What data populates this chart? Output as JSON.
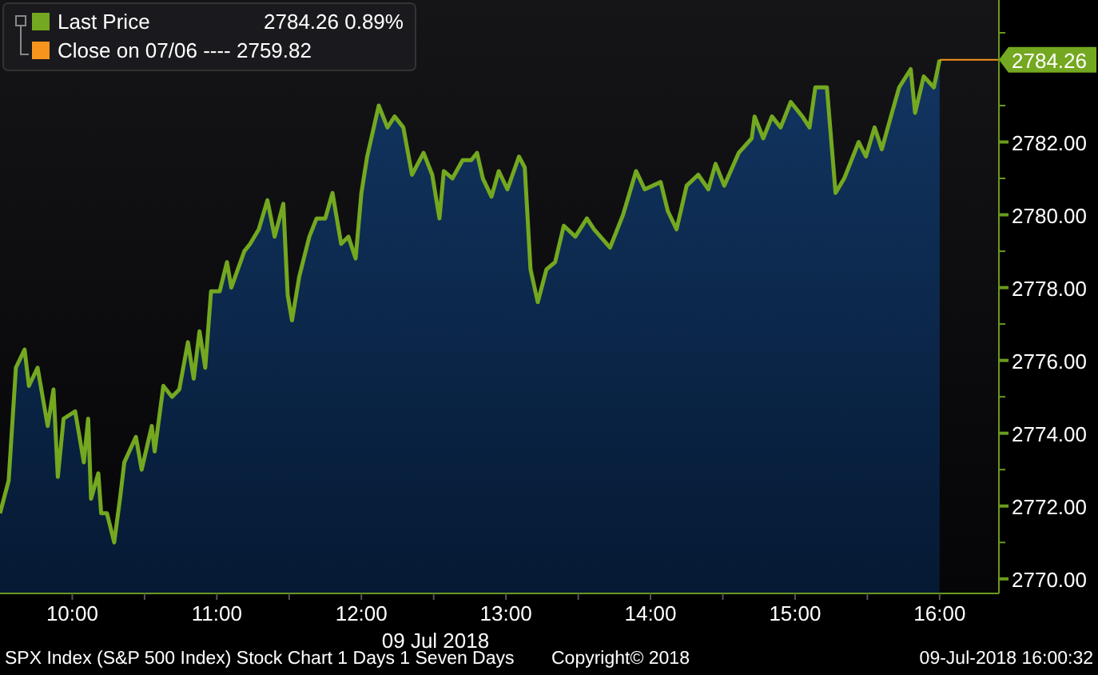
{
  "chart_data": {
    "type": "area",
    "xlabel": "09 Jul 2018",
    "x": [
      9.5,
      9.56,
      9.61,
      9.67,
      9.7,
      9.76,
      9.83,
      9.87,
      9.9,
      9.94,
      10.02,
      10.08,
      10.11,
      10.13,
      10.18,
      10.2,
      10.24,
      10.29,
      10.33,
      10.36,
      10.44,
      10.48,
      10.55,
      10.57,
      10.63,
      10.69,
      10.74,
      10.8,
      10.84,
      10.88,
      10.92,
      10.96,
      11.02,
      11.07,
      11.1,
      11.19,
      11.23,
      11.29,
      11.35,
      11.4,
      11.46,
      11.49,
      11.52,
      11.57,
      11.64,
      11.69,
      11.75,
      11.8,
      11.86,
      11.91,
      11.96,
      12.0,
      12.04,
      12.12,
      12.18,
      12.23,
      12.29,
      12.35,
      12.43,
      12.49,
      12.54,
      12.57,
      12.63,
      12.7,
      12.76,
      12.8,
      12.84,
      12.9,
      12.95,
      13.01,
      13.09,
      13.13,
      13.17,
      13.22,
      13.28,
      13.34,
      13.4,
      13.48,
      13.56,
      13.61,
      13.72,
      13.81,
      13.9,
      13.96,
      14.07,
      14.12,
      14.18,
      14.25,
      14.33,
      14.4,
      14.45,
      14.51,
      14.61,
      14.7,
      14.72,
      14.78,
      14.84,
      14.9,
      14.97,
      15.05,
      15.1,
      15.14,
      15.22,
      15.28,
      15.34,
      15.44,
      15.49,
      15.55,
      15.6,
      15.67,
      15.72,
      15.8,
      15.83,
      15.89,
      15.96,
      16.0
    ],
    "series": [
      {
        "name": "Last Price",
        "color": "#74a820",
        "values": [
          2771.8,
          2772.7,
          2775.8,
          2776.3,
          2775.3,
          2775.8,
          2774.2,
          2775.2,
          2772.8,
          2774.4,
          2774.6,
          2773.2,
          2774.4,
          2772.2,
          2772.9,
          2771.8,
          2771.8,
          2771.0,
          2772.2,
          2773.2,
          2773.9,
          2773.0,
          2774.2,
          2773.5,
          2775.3,
          2775.0,
          2775.2,
          2776.5,
          2775.5,
          2776.8,
          2775.8,
          2777.9,
          2777.9,
          2778.7,
          2778.0,
          2779.0,
          2779.2,
          2779.6,
          2780.4,
          2779.4,
          2780.3,
          2777.8,
          2777.1,
          2778.3,
          2779.4,
          2779.9,
          2779.9,
          2780.6,
          2779.2,
          2779.4,
          2778.8,
          2780.6,
          2781.6,
          2783.0,
          2782.4,
          2782.7,
          2782.4,
          2781.1,
          2781.7,
          2781.1,
          2779.9,
          2781.2,
          2781.0,
          2781.5,
          2781.5,
          2781.7,
          2781.0,
          2780.5,
          2781.2,
          2780.7,
          2781.6,
          2781.3,
          2778.5,
          2777.6,
          2778.5,
          2778.7,
          2779.7,
          2779.4,
          2779.9,
          2779.6,
          2779.1,
          2780.0,
          2781.2,
          2780.7,
          2780.9,
          2780.1,
          2779.6,
          2780.8,
          2781.1,
          2780.7,
          2781.4,
          2780.8,
          2781.7,
          2782.1,
          2782.7,
          2782.1,
          2782.7,
          2782.4,
          2783.1,
          2782.7,
          2782.4,
          2783.5,
          2783.5,
          2780.6,
          2781.0,
          2782.0,
          2781.6,
          2782.4,
          2781.8,
          2782.8,
          2783.5,
          2784.0,
          2782.8,
          2783.8,
          2783.5,
          2784.26
        ]
      }
    ],
    "xlim": [
      9.5,
      16.41
    ],
    "xticks": [
      {
        "value": 10,
        "label": "10:00"
      },
      {
        "value": 10.5,
        "label": null
      },
      {
        "value": 11,
        "label": "11:00"
      },
      {
        "value": 11.5,
        "label": null
      },
      {
        "value": 12,
        "label": "12:00"
      },
      {
        "value": 12.5,
        "label": null
      },
      {
        "value": 13,
        "label": "13:00"
      },
      {
        "value": 13.5,
        "label": null
      },
      {
        "value": 14,
        "label": "14:00"
      },
      {
        "value": 14.5,
        "label": null
      },
      {
        "value": 15,
        "label": "15:00"
      },
      {
        "value": 15.5,
        "label": null
      },
      {
        "value": 16,
        "label": "16:00"
      }
    ],
    "ylim": [
      2769.6,
      2785.9
    ],
    "yticks": [
      {
        "value": 2770,
        "label": "2770.00"
      },
      {
        "value": 2771,
        "label": null
      },
      {
        "value": 2772,
        "label": "2772.00"
      },
      {
        "value": 2773,
        "label": null
      },
      {
        "value": 2774,
        "label": "2774.00"
      },
      {
        "value": 2775,
        "label": null
      },
      {
        "value": 2776,
        "label": "2776.00"
      },
      {
        "value": 2777,
        "label": null
      },
      {
        "value": 2778,
        "label": "2778.00"
      },
      {
        "value": 2779,
        "label": null
      },
      {
        "value": 2780,
        "label": "2780.00"
      },
      {
        "value": 2781,
        "label": null
      },
      {
        "value": 2782,
        "label": "2782.00"
      },
      {
        "value": 2783,
        "label": null
      },
      {
        "value": 2785,
        "label": null
      }
    ],
    "ref_lines": [
      {
        "axis": "y",
        "value": 2784.26,
        "label": "2784.26",
        "color": "#f7941d"
      }
    ],
    "legend": "top left",
    "annotations": [
      "2784.26  0.89%",
      "Close on 07/06 ---- 2759.82",
      "SPX Index (S&P 500 Index) Stock Chart 1 Days 1 Seven Days",
      "Copyright© 2018",
      "09-Jul-2018 16:00:32"
    ]
  }
}
